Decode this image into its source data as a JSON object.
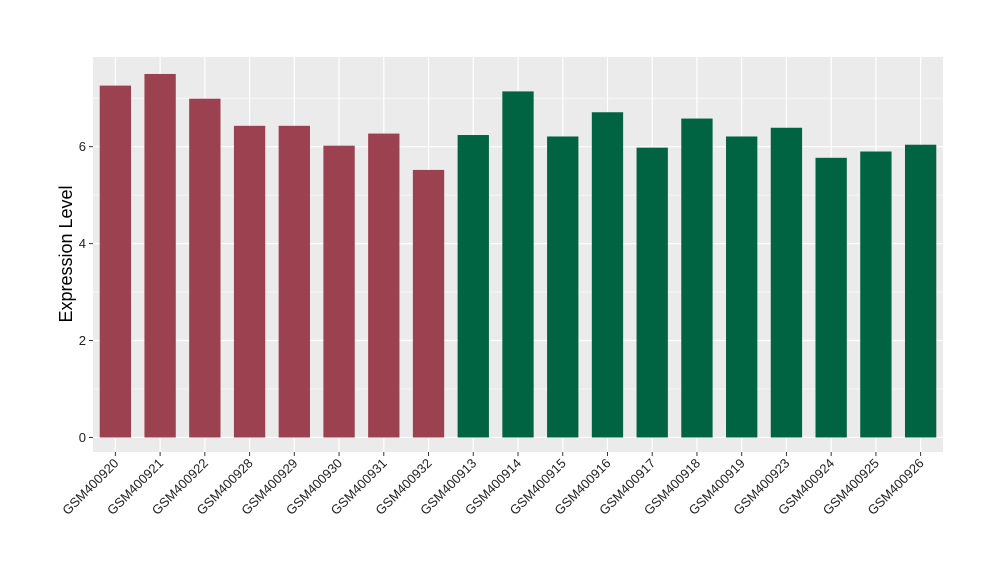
{
  "chart_data": {
    "type": "bar",
    "title": "",
    "xlabel": "",
    "ylabel": "Expression Level",
    "ylim": [
      -0.3,
      7.85
    ],
    "yticks": [
      0,
      2,
      4,
      6
    ],
    "grid": true,
    "legend": "none",
    "categories": [
      "GSM400920",
      "GSM400921",
      "GSM400922",
      "GSM400928",
      "GSM400929",
      "GSM400930",
      "GSM400931",
      "GSM400932",
      "GSM400913",
      "GSM400914",
      "GSM400915",
      "GSM400916",
      "GSM400917",
      "GSM400918",
      "GSM400919",
      "GSM400923",
      "GSM400924",
      "GSM400925",
      "GSM400926"
    ],
    "values": [
      7.26,
      7.5,
      6.99,
      6.43,
      6.43,
      6.02,
      6.27,
      5.52,
      6.24,
      7.14,
      6.21,
      6.71,
      5.98,
      6.58,
      6.21,
      6.39,
      5.77,
      5.9,
      6.04
    ],
    "groups": [
      "a",
      "a",
      "a",
      "a",
      "a",
      "a",
      "a",
      "a",
      "b",
      "b",
      "b",
      "b",
      "b",
      "b",
      "b",
      "b",
      "b",
      "b",
      "b"
    ],
    "colors": {
      "a": "#9b414f",
      "b": "#006442",
      "panel": "#ebebeb",
      "grid": "#ffffff",
      "axis": "#333333"
    }
  }
}
